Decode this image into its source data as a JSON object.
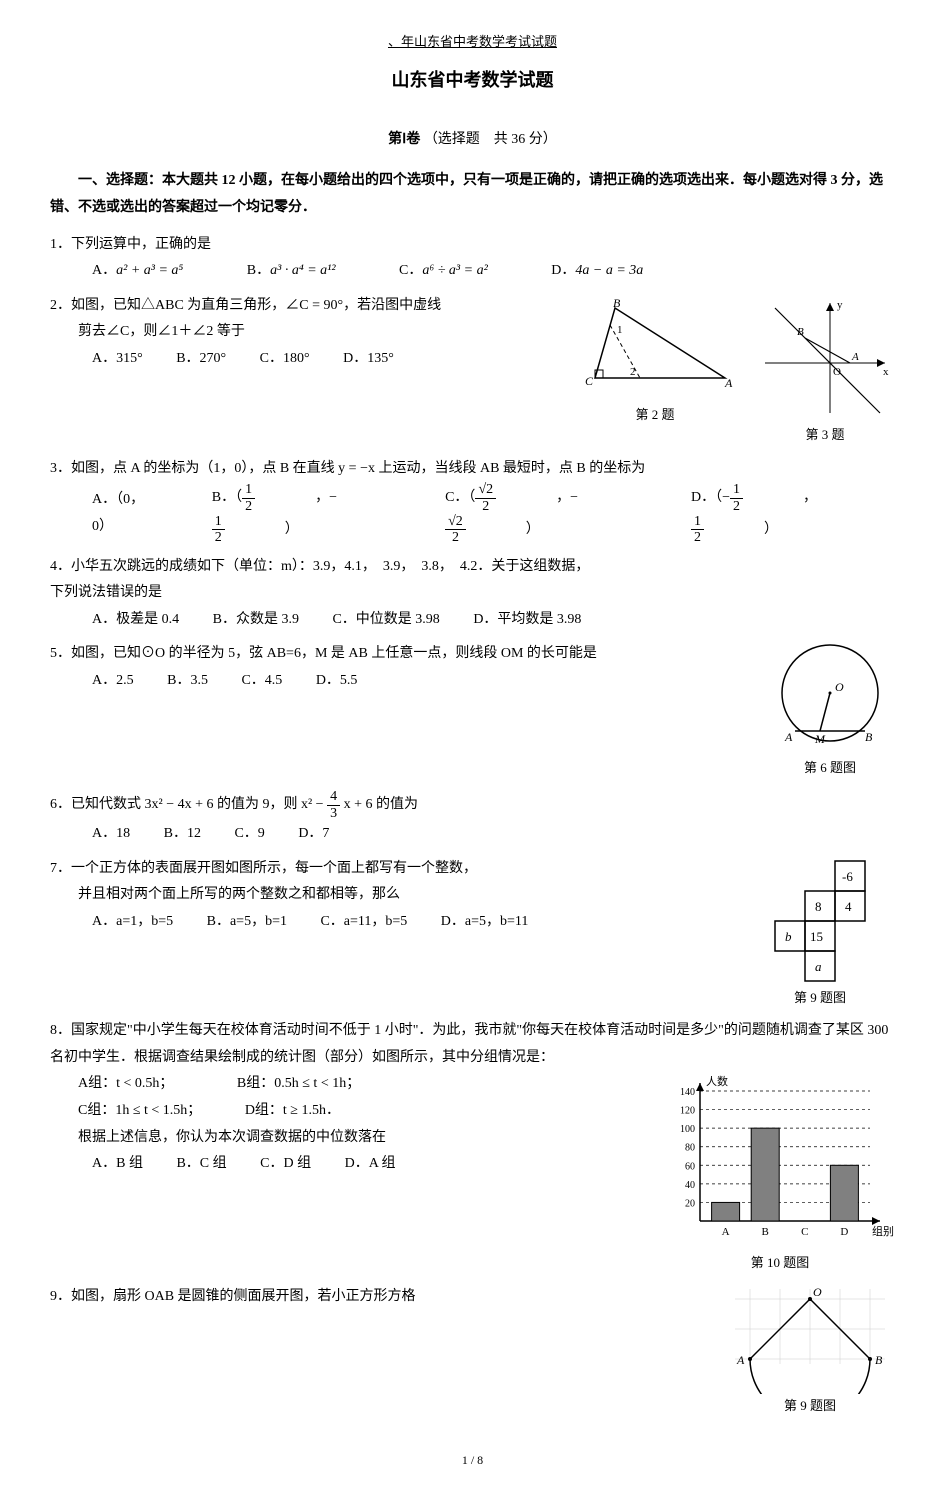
{
  "header": "、年山东省中考数学考试试题",
  "title": "山东省中考数学试题",
  "section": {
    "part": "第Ⅰ卷",
    "desc": "（选择题　共 36 分）"
  },
  "instructions": "一、选择题：本大题共 12 小题，在每小题给出的四个选项中，只有一项是正确的，请把正确的选项选出来．每小题选对得 3 分，选错、不选或选出的答案超过一个均记零分．",
  "q1": {
    "stem": "1．下列运算中，正确的是",
    "A": "a² + a³ = a⁵",
    "B": "a³ · a⁴ = a¹²",
    "C": "a⁶ ÷ a³ = a²",
    "D": "4a − a = 3a"
  },
  "q2": {
    "stem": "2．如图，已知△ABC 为直角三角形，∠C = 90°，若沿图中虚线",
    "stem2": "剪去∠C，则∠1＋∠2 等于",
    "A": "A．315°",
    "B": "B．270°",
    "C": "C．180°",
    "D": "D．135°",
    "caption": "第 2 题"
  },
  "q3": {
    "stem": "3．如图，点 A 的坐标为（1，0），点 B 在直线 y = −x 上运动，当线段 AB 最短时，点 B 的坐标为",
    "A": "A．（0，0）",
    "caption": "第 3 题"
  },
  "q4": {
    "stem": "4．小华五次跳远的成绩如下（单位：m）：3.9，4.1，　3.9，　3.8，　4.2．关于这组数据，",
    "stem2": "下列说法错误的是",
    "A": "A．极差是 0.4",
    "B": "B．众数是 3.9",
    "C": "C．中位数是 3.98",
    "D": "D．平均数是 3.98"
  },
  "q5": {
    "stem": "5．如图，已知⊙O 的半径为 5，弦 AB=6，M 是 AB 上任意一点，则线段 OM 的长可能是",
    "A": "A．2.5",
    "B": "B．3.5",
    "C": "C．4.5",
    "D": "D．5.5",
    "caption": "第 6 题图"
  },
  "q6": {
    "stem_pre": "6．已知代数式 3x² − 4x + 6 的值为 9，则 x² − ",
    "stem_post": " x + 6 的值为",
    "A": "A．18",
    "B": "B．12",
    "C": "C．9",
    "D": "D．7"
  },
  "q7": {
    "stem": "7．一个正方体的表面展开图如图所示，每一个面上都写有一个整数，",
    "stem2": "并且相对两个面上所写的两个整数之和都相等，那么",
    "A": "A．a=1，b=5",
    "B": "B．a=5，b=1",
    "C": "C．a=11，b=5",
    "D": "D．a=5，b=11",
    "caption": "第 9 题图",
    "cells": {
      "c1": "-6",
      "c2": "8",
      "c3": "4",
      "c4": "b",
      "c5": "15",
      "c6": "a"
    }
  },
  "q8": {
    "stem": "8．国家规定\"中小学生每天在校体育活动时间不低于 1 小时\"．为此，我市就\"你每天在校体育活动时间是多少\"的问题随机调查了某区 300 名初中学生．根据调查结果绘制成的统计图（部分）如图所示，其中分组情况是：",
    "grpA": "A组：t < 0.5h；",
    "grpB": "B组：0.5h ≤ t < 1h；",
    "grpC": "C组：1h ≤ t < 1.5h；",
    "grpD": "D组：t ≥ 1.5h．",
    "stem2": "根据上述信息，你认为本次调查数据的中位数落在",
    "A": "A．B 组",
    "B": "B．C 组",
    "C": "C．D 组",
    "D": "D．A 组",
    "caption": "第 10 题图",
    "chart": {
      "ylabel": "人数",
      "xlabel": "组别",
      "ymax": 140,
      "ystep": 20,
      "categories": [
        "A",
        "B",
        "C",
        "D"
      ],
      "values": [
        20,
        100,
        null,
        60
      ],
      "barC_missing": true,
      "bar_fill": "#808080",
      "grid_color": "#000"
    }
  },
  "q9": {
    "stem": "9．如图，扇形 OAB 是圆锥的侧面展开图，若小正方形方格",
    "caption": "第 9 题图"
  },
  "footer": "1 / 8"
}
